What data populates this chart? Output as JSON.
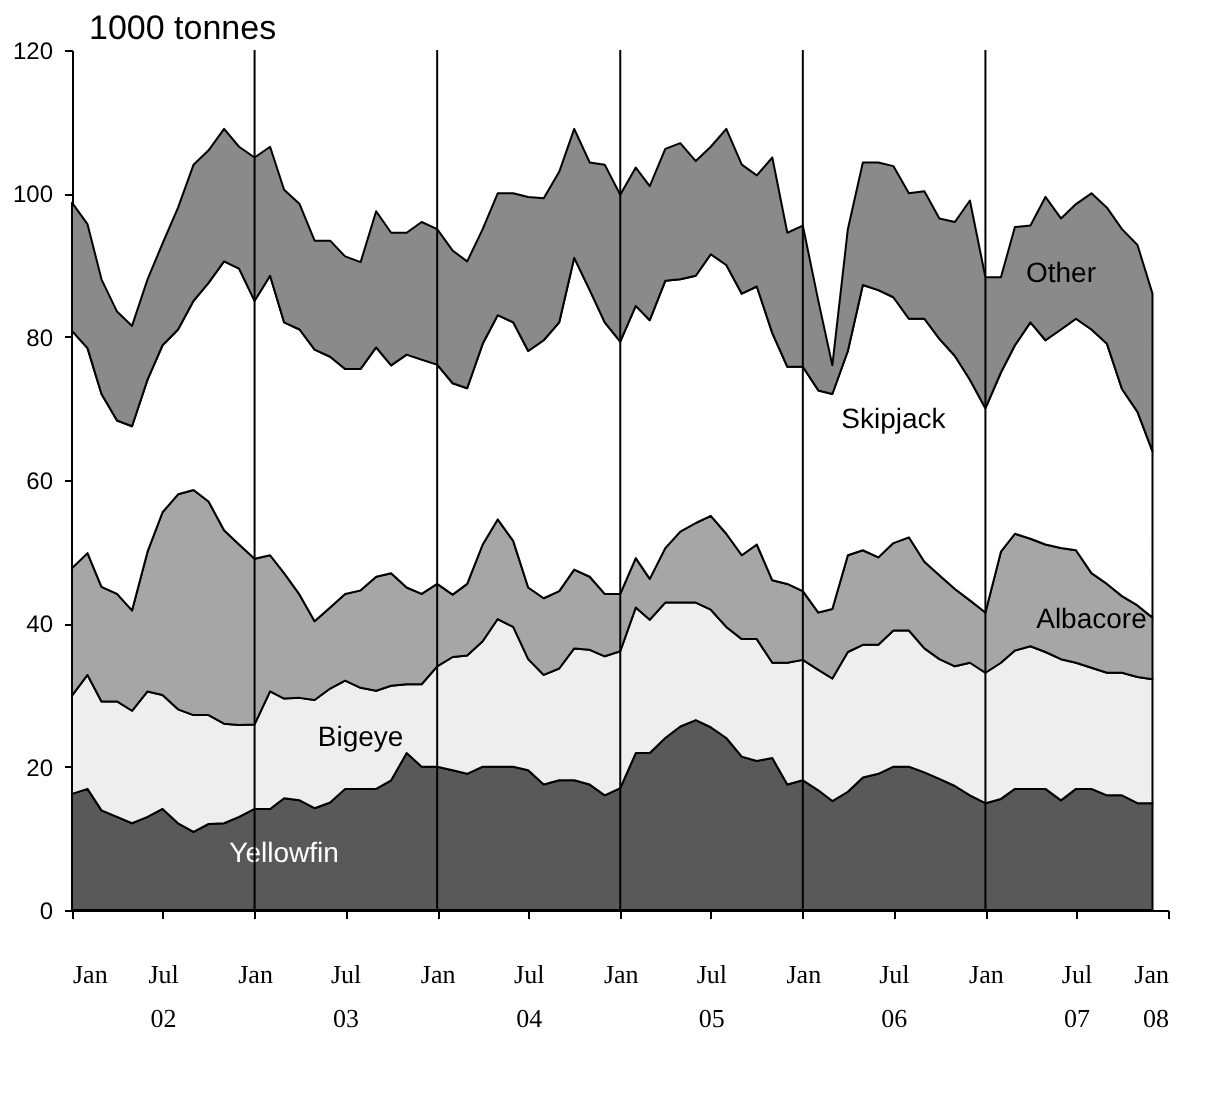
{
  "chart_data": {
    "type": "area",
    "stacked": true,
    "ylabel": "1000 tonnes",
    "legend": false,
    "grid": false,
    "x": [
      "2002-01",
      "2002-02",
      "2002-03",
      "2002-04",
      "2002-05",
      "2002-06",
      "2002-07",
      "2002-08",
      "2002-09",
      "2002-10",
      "2002-11",
      "2002-12",
      "2003-01",
      "2003-02",
      "2003-03",
      "2003-04",
      "2003-05",
      "2003-06",
      "2003-07",
      "2003-08",
      "2003-09",
      "2003-10",
      "2003-11",
      "2003-12",
      "2004-01",
      "2004-02",
      "2004-03",
      "2004-04",
      "2004-05",
      "2004-06",
      "2004-07",
      "2004-08",
      "2004-09",
      "2004-10",
      "2004-11",
      "2004-12",
      "2005-01",
      "2005-02",
      "2005-03",
      "2005-04",
      "2005-05",
      "2005-06",
      "2005-07",
      "2005-08",
      "2005-09",
      "2005-10",
      "2005-11",
      "2005-12",
      "2006-01",
      "2006-02",
      "2006-03",
      "2006-04",
      "2006-05",
      "2006-06",
      "2006-07",
      "2006-08",
      "2006-09",
      "2006-10",
      "2006-11",
      "2006-12",
      "2007-01",
      "2007-02",
      "2007-03",
      "2007-04",
      "2007-05",
      "2007-06",
      "2007-07",
      "2007-08",
      "2007-09",
      "2007-10",
      "2007-11",
      "2007-12"
    ],
    "xlim": [
      "2002-01",
      "2008-01"
    ],
    "xticks": [
      {
        "value": "2002-01",
        "label": "Jan"
      },
      {
        "value": "2002-07",
        "label": "Jul\n02"
      },
      {
        "value": "2003-01",
        "label": "Jan"
      },
      {
        "value": "2003-07",
        "label": "Jul\n03"
      },
      {
        "value": "2004-01",
        "label": "Jan"
      },
      {
        "value": "2004-07",
        "label": "Jul\n04"
      },
      {
        "value": "2005-01",
        "label": "Jan"
      },
      {
        "value": "2005-07",
        "label": "Jul\n05"
      },
      {
        "value": "2006-01",
        "label": "Jan"
      },
      {
        "value": "2006-07",
        "label": "Jul\n06"
      },
      {
        "value": "2007-01",
        "label": "Jan"
      },
      {
        "value": "2007-07",
        "label": "Jul\n07"
      },
      {
        "value": "2008-01",
        "label": "Jan\n08"
      }
    ],
    "ylim": [
      0,
      120
    ],
    "yticks": [
      0,
      20,
      40,
      60,
      80,
      100,
      120
    ],
    "series": [
      {
        "name": "Yellowfin",
        "color": "#595959",
        "values": [
          16.2,
          16.9,
          13.9,
          13,
          12.1,
          13,
          14.1,
          12.1,
          10.9,
          12,
          12.1,
          13,
          14.1,
          14.1,
          15.6,
          15.3,
          14.2,
          15,
          16.9,
          16.9,
          16.9,
          18.1,
          21.9,
          20,
          20,
          19.5,
          19,
          20,
          20,
          20,
          19.5,
          17.5,
          18.1,
          18.1,
          17.5,
          16,
          17,
          21.9,
          21.9,
          24,
          25.6,
          26.5,
          25.5,
          24,
          21.4,
          20.8,
          21.2,
          17.5,
          18.1,
          16.7,
          15.2,
          16.5,
          18.5,
          19,
          20,
          20,
          19.2,
          18.3,
          17.3,
          16,
          14.9,
          15.5,
          16.9,
          16.9,
          16.9,
          15.3,
          16.9,
          16.9,
          16,
          16,
          14.9,
          14.9
        ]
      },
      {
        "name": "Bigeye",
        "color": "#eeeeee",
        "values": [
          13.7,
          15.9,
          15.2,
          16.1,
          15.7,
          17.5,
          15.9,
          15.9,
          16.3,
          15.2,
          13.9,
          12.8,
          11.8,
          16.4,
          13.9,
          14.3,
          15.1,
          15.9,
          15.1,
          14.1,
          13.7,
          13.2,
          9.6,
          11.5,
          14,
          15.8,
          16.5,
          17.5,
          20.6,
          19.5,
          15.5,
          15.3,
          15.6,
          18.4,
          18.8,
          19.4,
          19.1,
          20.3,
          18.6,
          18.9,
          17.3,
          16.4,
          16.4,
          15.5,
          16.4,
          17,
          13.3,
          17,
          16.8,
          16.8,
          17.1,
          19.5,
          18.5,
          18,
          19,
          19,
          17.3,
          16.7,
          16.7,
          18.5,
          18.2,
          19,
          19.3,
          19.9,
          19.1,
          19.7,
          17.6,
          16.9,
          17.1,
          17.1,
          17.6,
          17.3
        ]
      },
      {
        "name": "Albacore",
        "color": "#a6a6a6",
        "values": [
          17.8,
          17,
          16,
          15,
          14,
          19.5,
          25.5,
          30,
          31.4,
          29.8,
          27,
          25.2,
          23.1,
          19,
          17.5,
          14.4,
          11,
          11.3,
          12.1,
          13.6,
          15.9,
          15.7,
          13.5,
          12.6,
          11.5,
          8.7,
          10,
          13.5,
          13.9,
          12,
          10,
          10.7,
          10.8,
          11,
          10.2,
          8.7,
          8,
          6.9,
          5.7,
          7.6,
          9.9,
          11.1,
          13.1,
          13,
          11.7,
          13.2,
          11.5,
          11,
          9.6,
          8,
          9.7,
          13.5,
          13.2,
          12.2,
          12.2,
          13,
          12.1,
          11.7,
          10.8,
          8.7,
          8.4,
          15.5,
          16.3,
          15,
          15,
          15.5,
          15.7,
          13.2,
          12.4,
          10.7,
          10,
          8.6
        ]
      },
      {
        "name": "Skipjack",
        "color": "#ffffff",
        "values": [
          33.1,
          28.6,
          26.9,
          24.2,
          25.7,
          24,
          23.3,
          23,
          26.4,
          30.5,
          37.5,
          38.5,
          36,
          39,
          35,
          37,
          37.9,
          35,
          31.4,
          30.9,
          32,
          29,
          32.5,
          32.7,
          30.6,
          29.5,
          27.3,
          28,
          28.5,
          30.5,
          33,
          36,
          37.5,
          43.5,
          40,
          37.9,
          35.2,
          35.2,
          36.1,
          37.3,
          35.2,
          34.5,
          36.5,
          37.5,
          36.5,
          36,
          34.5,
          30.3,
          31.3,
          31,
          30,
          28.5,
          37,
          37.3,
          34.3,
          30.5,
          33.9,
          33,
          32.5,
          30.8,
          28.5,
          25,
          26.3,
          30.2,
          28.5,
          30.5,
          32.3,
          34,
          33.5,
          28.9,
          27,
          23.2
        ]
      },
      {
        "name": "Other",
        "color": "#8a8a8a",
        "values": [
          17.9,
          17.3,
          16,
          15.2,
          14,
          14,
          14.2,
          17,
          19,
          18.5,
          18.5,
          17,
          20,
          18,
          18.5,
          17.5,
          15.2,
          16.2,
          15.7,
          14.9,
          19,
          18.5,
          17,
          19.2,
          18.9,
          18.5,
          17.7,
          16,
          17,
          18,
          21.5,
          19.8,
          21,
          18,
          17.8,
          22,
          20.5,
          19.3,
          18.7,
          18.4,
          19,
          16,
          15,
          19,
          18,
          15.5,
          24.5,
          18.7,
          19.7,
          12.5,
          4,
          17,
          17.1,
          17.8,
          18.3,
          17.5,
          17.8,
          16.8,
          18.7,
          25,
          18.3,
          13.3,
          16.5,
          13.5,
          20,
          15.5,
          16,
          19,
          19,
          22.3,
          23.3,
          22
        ]
      }
    ],
    "ref_lines": [
      {
        "axis": "x",
        "value": "2003-01",
        "color": "#000000"
      },
      {
        "axis": "x",
        "value": "2004-01",
        "color": "#000000"
      },
      {
        "axis": "x",
        "value": "2005-01",
        "color": "#000000"
      },
      {
        "axis": "x",
        "value": "2006-01",
        "color": "#000000"
      },
      {
        "axis": "x",
        "value": "2007-01",
        "color": "#000000"
      }
    ]
  }
}
